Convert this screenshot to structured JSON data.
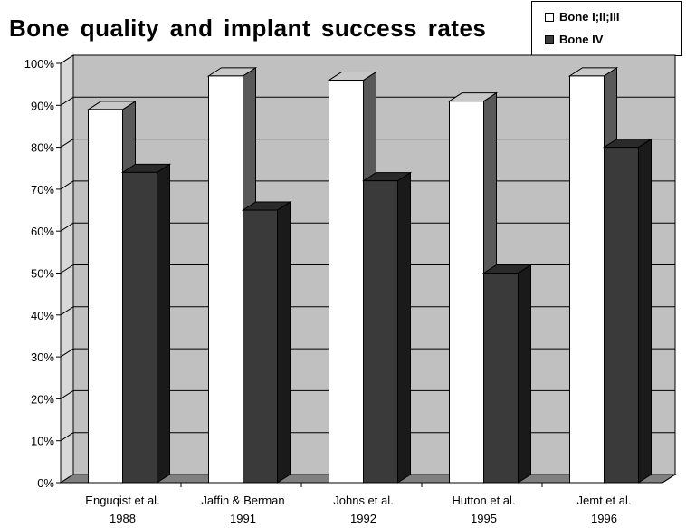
{
  "chart_data": {
    "type": "bar",
    "title": "Bone quality and implant success rates",
    "xlabel": "",
    "ylabel": "",
    "categories": [
      [
        "Enguqist et al.",
        "1988"
      ],
      [
        "Jaffin & Berman",
        "1991"
      ],
      [
        "Johns et al.",
        "1992"
      ],
      [
        "Hutton et al.",
        "1995"
      ],
      [
        "Jemt et al.",
        "1996"
      ]
    ],
    "series": [
      {
        "name": "Bone I;II;III",
        "values": [
          89,
          97,
          96,
          91,
          97
        ],
        "color": "#ffffff"
      },
      {
        "name": "Bone IV",
        "values": [
          74,
          65,
          72,
          50,
          80
        ],
        "color": "#3c3c3c"
      }
    ],
    "ylim": [
      0,
      100
    ],
    "yticks": [
      "0%",
      "10%",
      "20%",
      "30%",
      "40%",
      "50%",
      "60%",
      "70%",
      "80%",
      "90%",
      "100%"
    ],
    "grid": true,
    "legend_position": "top-right",
    "style": "3d",
    "colors": {
      "wall": "#c0c0c0",
      "floor": "#808080"
    }
  }
}
